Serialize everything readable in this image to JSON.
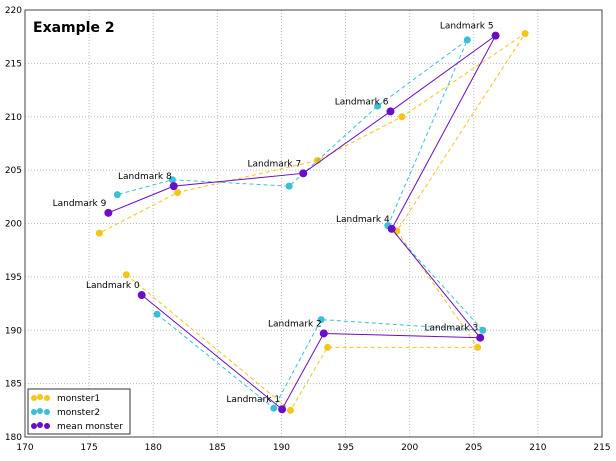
{
  "chart_data": {
    "type": "line",
    "title": "Example 2",
    "xlabel": "",
    "ylabel": "",
    "xlim": [
      170,
      215
    ],
    "ylim": [
      180,
      220
    ],
    "xticks": [
      "170",
      "175",
      "180",
      "185",
      "190",
      "195",
      "200",
      "205",
      "210",
      "215"
    ],
    "yticks": [
      "180",
      "185",
      "190",
      "195",
      "200",
      "205",
      "210",
      "215",
      "220"
    ],
    "grid": true,
    "legend_position": "bottom-left",
    "point_labels": [
      "Landmark 0",
      "Landmark 1",
      "Landmark 2",
      "Landmark 3",
      "Landmark 4",
      "Landmark 5",
      "Landmark 6",
      "Landmark 7",
      "Landmark 8",
      "Landmark 9"
    ],
    "series": [
      {
        "name": "monster1",
        "color": "#f5c518",
        "style": "dashed",
        "x": [
          177.9,
          190.7,
          193.6,
          205.3,
          199.0,
          209.0,
          199.4,
          192.8,
          181.9,
          175.8
        ],
        "y": [
          195.2,
          182.5,
          188.4,
          188.4,
          199.3,
          217.8,
          210.0,
          205.9,
          202.9,
          199.1
        ]
      },
      {
        "name": "monster2",
        "color": "#3bbfd8",
        "style": "dashed",
        "x": [
          180.3,
          189.4,
          193.1,
          205.7,
          198.3,
          204.5,
          197.5,
          190.6,
          181.5,
          177.2
        ],
        "y": [
          191.5,
          182.7,
          191.0,
          190.0,
          199.8,
          217.2,
          211.0,
          203.5,
          204.1,
          202.7
        ]
      },
      {
        "name": "mean monster",
        "color": "#6a0dc4",
        "style": "solid",
        "x": [
          179.1,
          190.05,
          193.3,
          205.5,
          198.6,
          206.7,
          198.5,
          191.7,
          181.6,
          176.5
        ],
        "y": [
          193.3,
          182.6,
          189.7,
          189.3,
          199.5,
          217.6,
          210.5,
          204.7,
          203.5,
          201.0
        ]
      }
    ]
  }
}
